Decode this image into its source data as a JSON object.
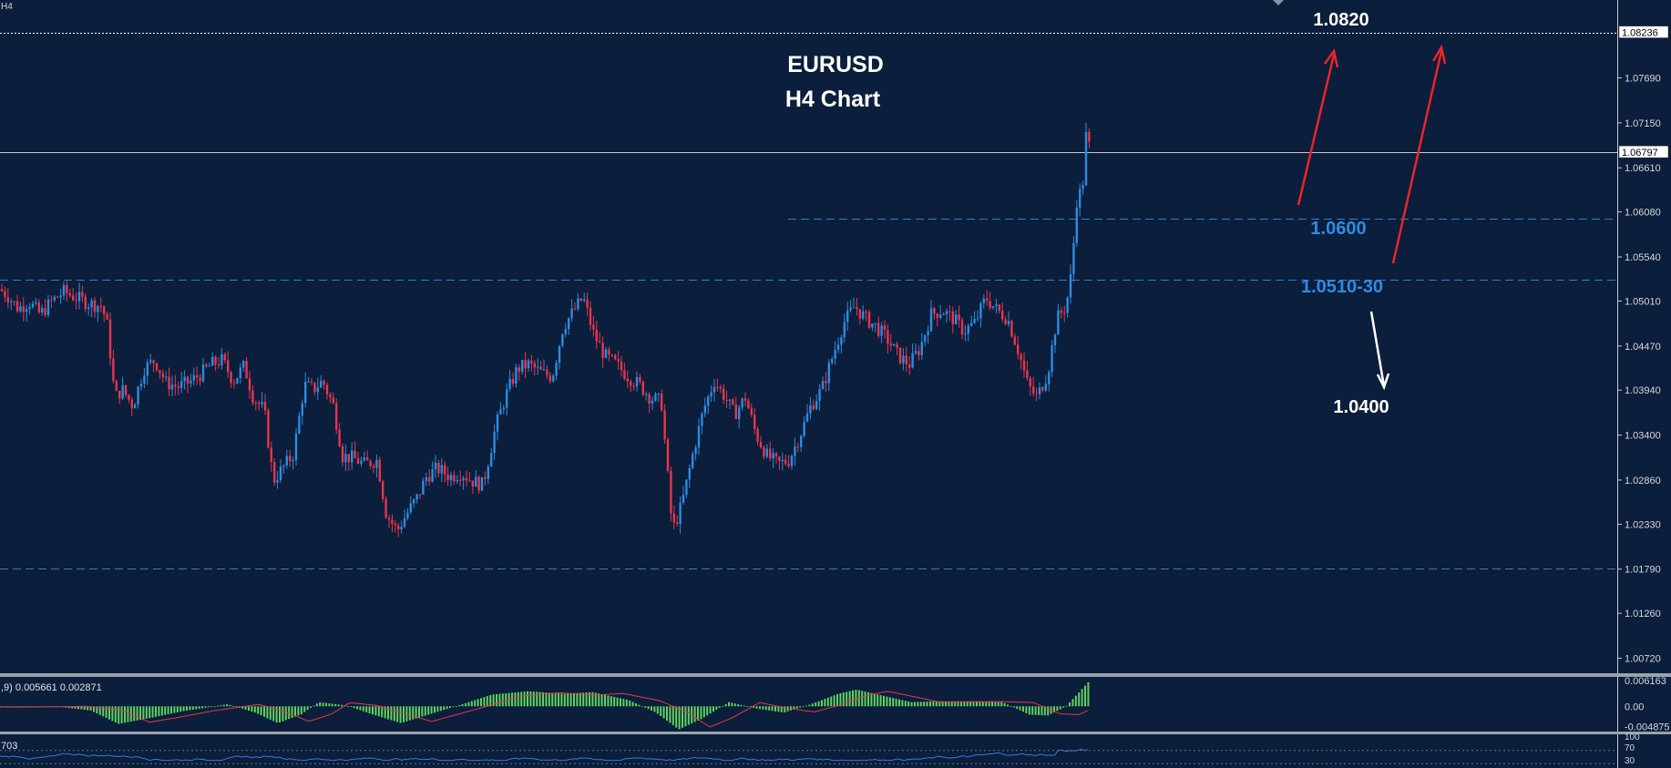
{
  "symbol": "EURUSD",
  "timeframe_label": "H4 Chart",
  "timeframe_corner": "H4",
  "chart_data": {
    "type": "candlestick",
    "title": "EURUSD",
    "subtitle": "H4 Chart",
    "y_ticks": [
      "1.07690",
      "1.07150",
      "1.06610",
      "1.06080",
      "1.05540",
      "1.05010",
      "1.04470",
      "1.03940",
      "1.03400",
      "1.02860",
      "1.02330",
      "1.01790",
      "1.01260",
      "1.00720"
    ],
    "ylim": [
      1.0039,
      1.0865
    ],
    "current_price": "1.06797",
    "top_price_tag": "1.08236",
    "annotations": [
      {
        "text": "1.0820",
        "color": "#ffffff",
        "kind": "target"
      },
      {
        "text": "1.0600",
        "color": "#2d8ce6",
        "kind": "support"
      },
      {
        "text": "1.0510-30",
        "color": "#2d8ce6",
        "kind": "support"
      },
      {
        "text": "1.0400",
        "color": "#ffffff",
        "kind": "target"
      }
    ],
    "horizontal_levels": [
      {
        "price": 1.06,
        "style": "dashed",
        "color": "#2d7fd6"
      },
      {
        "price": 1.0527,
        "style": "dashed",
        "color": "#2d7fd6"
      },
      {
        "price": 1.018,
        "style": "dashed",
        "color": "#2d7fd6"
      },
      {
        "price": 1.06797,
        "style": "solid",
        "color": "#c8c8c8"
      },
      {
        "price": 1.08236,
        "style": "dotted",
        "color": "#ffffff"
      }
    ],
    "price_path": [
      [
        0,
        1.0515
      ],
      [
        8,
        1.0508
      ],
      [
        20,
        1.0492
      ],
      [
        32,
        1.05
      ],
      [
        44,
        1.0485
      ],
      [
        58,
        1.0502
      ],
      [
        70,
        1.0512
      ],
      [
        84,
        1.0505
      ],
      [
        98,
        1.0498
      ],
      [
        112,
        1.0495
      ],
      [
        118,
        1.047
      ],
      [
        126,
        1.0385
      ],
      [
        134,
        1.0395
      ],
      [
        146,
        1.0375
      ],
      [
        158,
        1.042
      ],
      [
        170,
        1.043
      ],
      [
        182,
        1.0403
      ],
      [
        196,
        1.0398
      ],
      [
        210,
        1.0405
      ],
      [
        220,
        1.0413
      ],
      [
        232,
        1.0425
      ],
      [
        244,
        1.043
      ],
      [
        256,
        1.0405
      ],
      [
        268,
        1.0423
      ],
      [
        278,
        1.0385
      ],
      [
        290,
        1.037
      ],
      [
        300,
        1.0285
      ],
      [
        310,
        1.03
      ],
      [
        322,
        1.0317
      ],
      [
        334,
        1.04
      ],
      [
        344,
        1.0395
      ],
      [
        354,
        1.0405
      ],
      [
        366,
        1.0375
      ],
      [
        376,
        1.0315
      ],
      [
        388,
        1.0312
      ],
      [
        400,
        1.0305
      ],
      [
        414,
        1.031
      ],
      [
        424,
        1.0245
      ],
      [
        436,
        1.0225
      ],
      [
        446,
        1.0245
      ],
      [
        458,
        1.0265
      ],
      [
        468,
        1.029
      ],
      [
        480,
        1.03
      ],
      [
        494,
        1.029
      ],
      [
        506,
        1.0295
      ],
      [
        518,
        1.0285
      ],
      [
        530,
        1.028
      ],
      [
        544,
        1.035
      ],
      [
        556,
        1.039
      ],
      [
        568,
        1.042
      ],
      [
        580,
        1.0425
      ],
      [
        594,
        1.0415
      ],
      [
        606,
        1.041
      ],
      [
        618,
        1.047
      ],
      [
        630,
        1.049
      ],
      [
        640,
        1.0505
      ],
      [
        652,
        1.046
      ],
      [
        664,
        1.0435
      ],
      [
        676,
        1.0425
      ],
      [
        690,
        1.041
      ],
      [
        702,
        1.04
      ],
      [
        714,
        1.0385
      ],
      [
        726,
        1.038
      ],
      [
        738,
        1.0225
      ],
      [
        748,
        1.0255
      ],
      [
        760,
        1.0315
      ],
      [
        772,
        1.037
      ],
      [
        784,
        1.0405
      ],
      [
        796,
        1.0385
      ],
      [
        806,
        1.0365
      ],
      [
        818,
        1.0385
      ],
      [
        830,
        1.034
      ],
      [
        842,
        1.0315
      ],
      [
        854,
        1.0305
      ],
      [
        866,
        1.031
      ],
      [
        878,
        1.034
      ],
      [
        890,
        1.0375
      ],
      [
        902,
        1.0395
      ],
      [
        914,
        1.0435
      ],
      [
        926,
        1.0475
      ],
      [
        938,
        1.0495
      ],
      [
        950,
        1.048
      ],
      [
        962,
        1.047
      ],
      [
        974,
        1.0455
      ],
      [
        986,
        1.0435
      ],
      [
        998,
        1.0425
      ],
      [
        1010,
        1.0445
      ],
      [
        1022,
        1.0485
      ],
      [
        1034,
        1.049
      ],
      [
        1046,
        1.048
      ],
      [
        1058,
        1.0465
      ],
      [
        1070,
        1.0475
      ],
      [
        1082,
        1.0505
      ],
      [
        1094,
        1.049
      ],
      [
        1106,
        1.048
      ],
      [
        1118,
        1.044
      ],
      [
        1128,
        1.04
      ],
      [
        1138,
        1.0385
      ],
      [
        1150,
        1.0415
      ],
      [
        1160,
        1.048
      ],
      [
        1170,
        1.0495
      ],
      [
        1176,
        1.0535
      ],
      [
        1182,
        1.0625
      ],
      [
        1188,
        1.0635
      ],
      [
        1193,
        1.0715
      ],
      [
        1196,
        1.068
      ]
    ],
    "macd_label": ",9) 0.005661 0.002871",
    "macd_ticks": [
      "0.006163",
      "0.00",
      "-0.004875"
    ],
    "macd_ylim": [
      -0.0058,
      0.0068
    ],
    "macd_path": [
      [
        0,
        -0.0002
      ],
      [
        60,
        0.0
      ],
      [
        100,
        -0.001
      ],
      [
        130,
        -0.0042
      ],
      [
        160,
        -0.003
      ],
      [
        200,
        -0.0012
      ],
      [
        250,
        0.0005
      ],
      [
        280,
        -0.0015
      ],
      [
        305,
        -0.004
      ],
      [
        330,
        -0.002
      ],
      [
        350,
        0.001
      ],
      [
        380,
        0.0002
      ],
      [
        410,
        -0.002
      ],
      [
        440,
        -0.004
      ],
      [
        470,
        -0.002
      ],
      [
        500,
        0.0
      ],
      [
        540,
        0.0028
      ],
      [
        580,
        0.0036
      ],
      [
        620,
        0.003
      ],
      [
        650,
        0.0034
      ],
      [
        690,
        0.0015
      ],
      [
        720,
        -0.0015
      ],
      [
        745,
        -0.0055
      ],
      [
        770,
        -0.003
      ],
      [
        800,
        0.001
      ],
      [
        830,
        -0.0005
      ],
      [
        860,
        -0.0015
      ],
      [
        890,
        0.0005
      ],
      [
        920,
        0.003
      ],
      [
        940,
        0.004
      ],
      [
        970,
        0.0025
      ],
      [
        1000,
        0.001
      ],
      [
        1030,
        0.0012
      ],
      [
        1070,
        0.0012
      ],
      [
        1100,
        0.001
      ],
      [
        1130,
        -0.002
      ],
      [
        1150,
        -0.0022
      ],
      [
        1170,
        0.0
      ],
      [
        1185,
        0.0035
      ],
      [
        1196,
        0.0061
      ]
    ],
    "signal_lag": 10,
    "rsi_label": "703",
    "rsi_ticks": [
      "100",
      "70",
      "30"
    ]
  }
}
